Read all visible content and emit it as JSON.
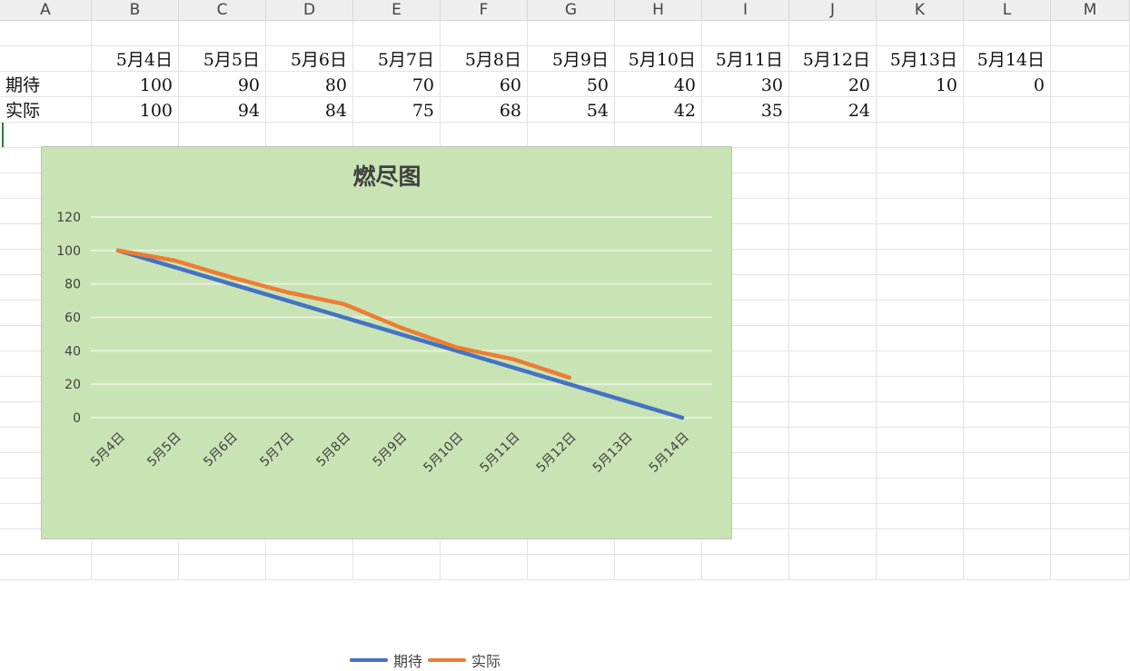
{
  "columns": [
    "A",
    "B",
    "C",
    "D",
    "E",
    "F",
    "G",
    "H",
    "I",
    "J",
    "K",
    "L",
    "M"
  ],
  "sheet": {
    "header_row": [
      "",
      "5月4日",
      "5月5日",
      "5月6日",
      "5月7日",
      "5月8日",
      "5月9日",
      "5月10日",
      "5月11日",
      "5月12日",
      "5月13日",
      "5月14日"
    ],
    "row_expected": [
      "期待",
      "100",
      "90",
      "80",
      "70",
      "60",
      "50",
      "40",
      "30",
      "20",
      "10",
      "0"
    ],
    "row_actual": [
      "实际",
      "100",
      "94",
      "84",
      "75",
      "68",
      "54",
      "42",
      "35",
      "24",
      "",
      ""
    ]
  },
  "colors": {
    "chart_bg": "#c9e4b4",
    "expected": "#4472c4",
    "actual": "#ed7d31",
    "gridline": "#e8f1df"
  },
  "chart_data": {
    "type": "line",
    "title": "燃尽图",
    "categories": [
      "5月4日",
      "5月5日",
      "5月6日",
      "5月7日",
      "5月8日",
      "5月9日",
      "5月10日",
      "5月11日",
      "5月12日",
      "5月13日",
      "5月14日"
    ],
    "series": [
      {
        "name": "期待",
        "values": [
          100,
          90,
          80,
          70,
          60,
          50,
          40,
          30,
          20,
          10,
          0
        ]
      },
      {
        "name": "实际",
        "values": [
          100,
          94,
          84,
          75,
          68,
          54,
          42,
          35,
          24,
          null,
          null
        ]
      }
    ],
    "ylim": [
      0,
      120
    ],
    "yticks": [
      "0",
      "20",
      "40",
      "60",
      "80",
      "100",
      "120"
    ],
    "grid": true,
    "legend": "bottom"
  }
}
